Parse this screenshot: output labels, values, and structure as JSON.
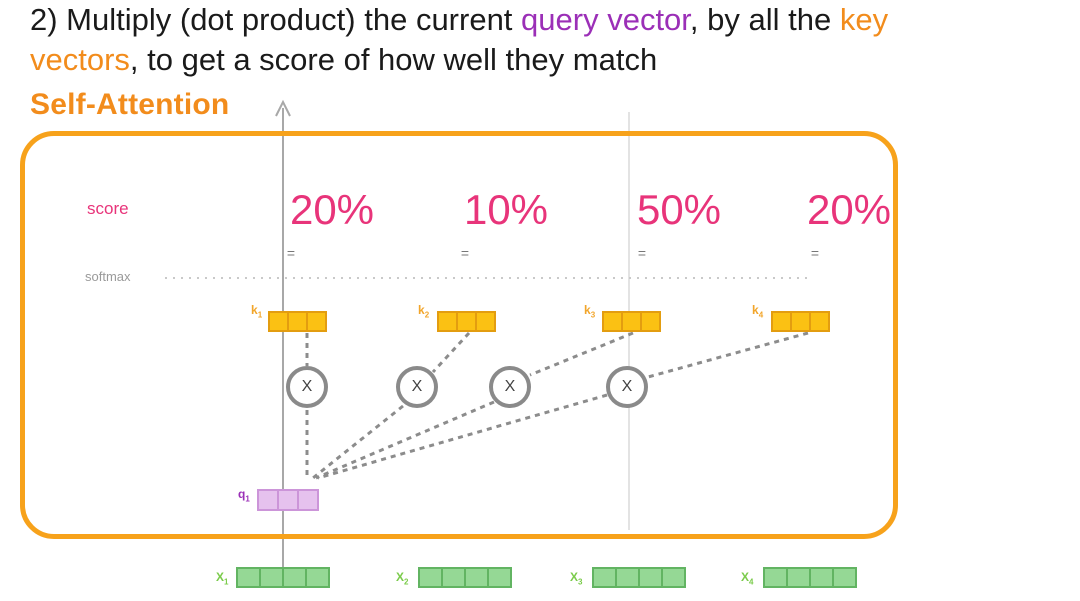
{
  "caption": {
    "prefix": "2) Multiply (dot product) the current ",
    "query_term": "query vector",
    "middle": ", by all the ",
    "key_term_1": "key",
    "key_term_2": "vectors",
    "suffix": ", to get a score of how well they match"
  },
  "panel_title": "Self-Attention",
  "row_labels": {
    "score": "score",
    "softmax": "softmax"
  },
  "scores": [
    "20%",
    "10%",
    "50%",
    "20%"
  ],
  "equals_sign": "=",
  "multiply_symbol": "X",
  "key_vectors": [
    {
      "label": "k",
      "sub": "1"
    },
    {
      "label": "k",
      "sub": "2"
    },
    {
      "label": "k",
      "sub": "3"
    },
    {
      "label": "k",
      "sub": "4"
    }
  ],
  "query_vector": {
    "label": "q",
    "sub": "1"
  },
  "input_vectors": [
    {
      "label": "X",
      "sub": "1"
    },
    {
      "label": "X",
      "sub": "2"
    },
    {
      "label": "X",
      "sub": "3"
    },
    {
      "label": "X",
      "sub": "4"
    }
  ],
  "colors": {
    "query": "#9b2fb7",
    "key": "#f28c1c",
    "score": "#e8347a",
    "panel_border": "#f7a21b",
    "key_cell": "#fbc113",
    "query_cell": "#e6c2ee",
    "input_cell": "#95d895"
  }
}
